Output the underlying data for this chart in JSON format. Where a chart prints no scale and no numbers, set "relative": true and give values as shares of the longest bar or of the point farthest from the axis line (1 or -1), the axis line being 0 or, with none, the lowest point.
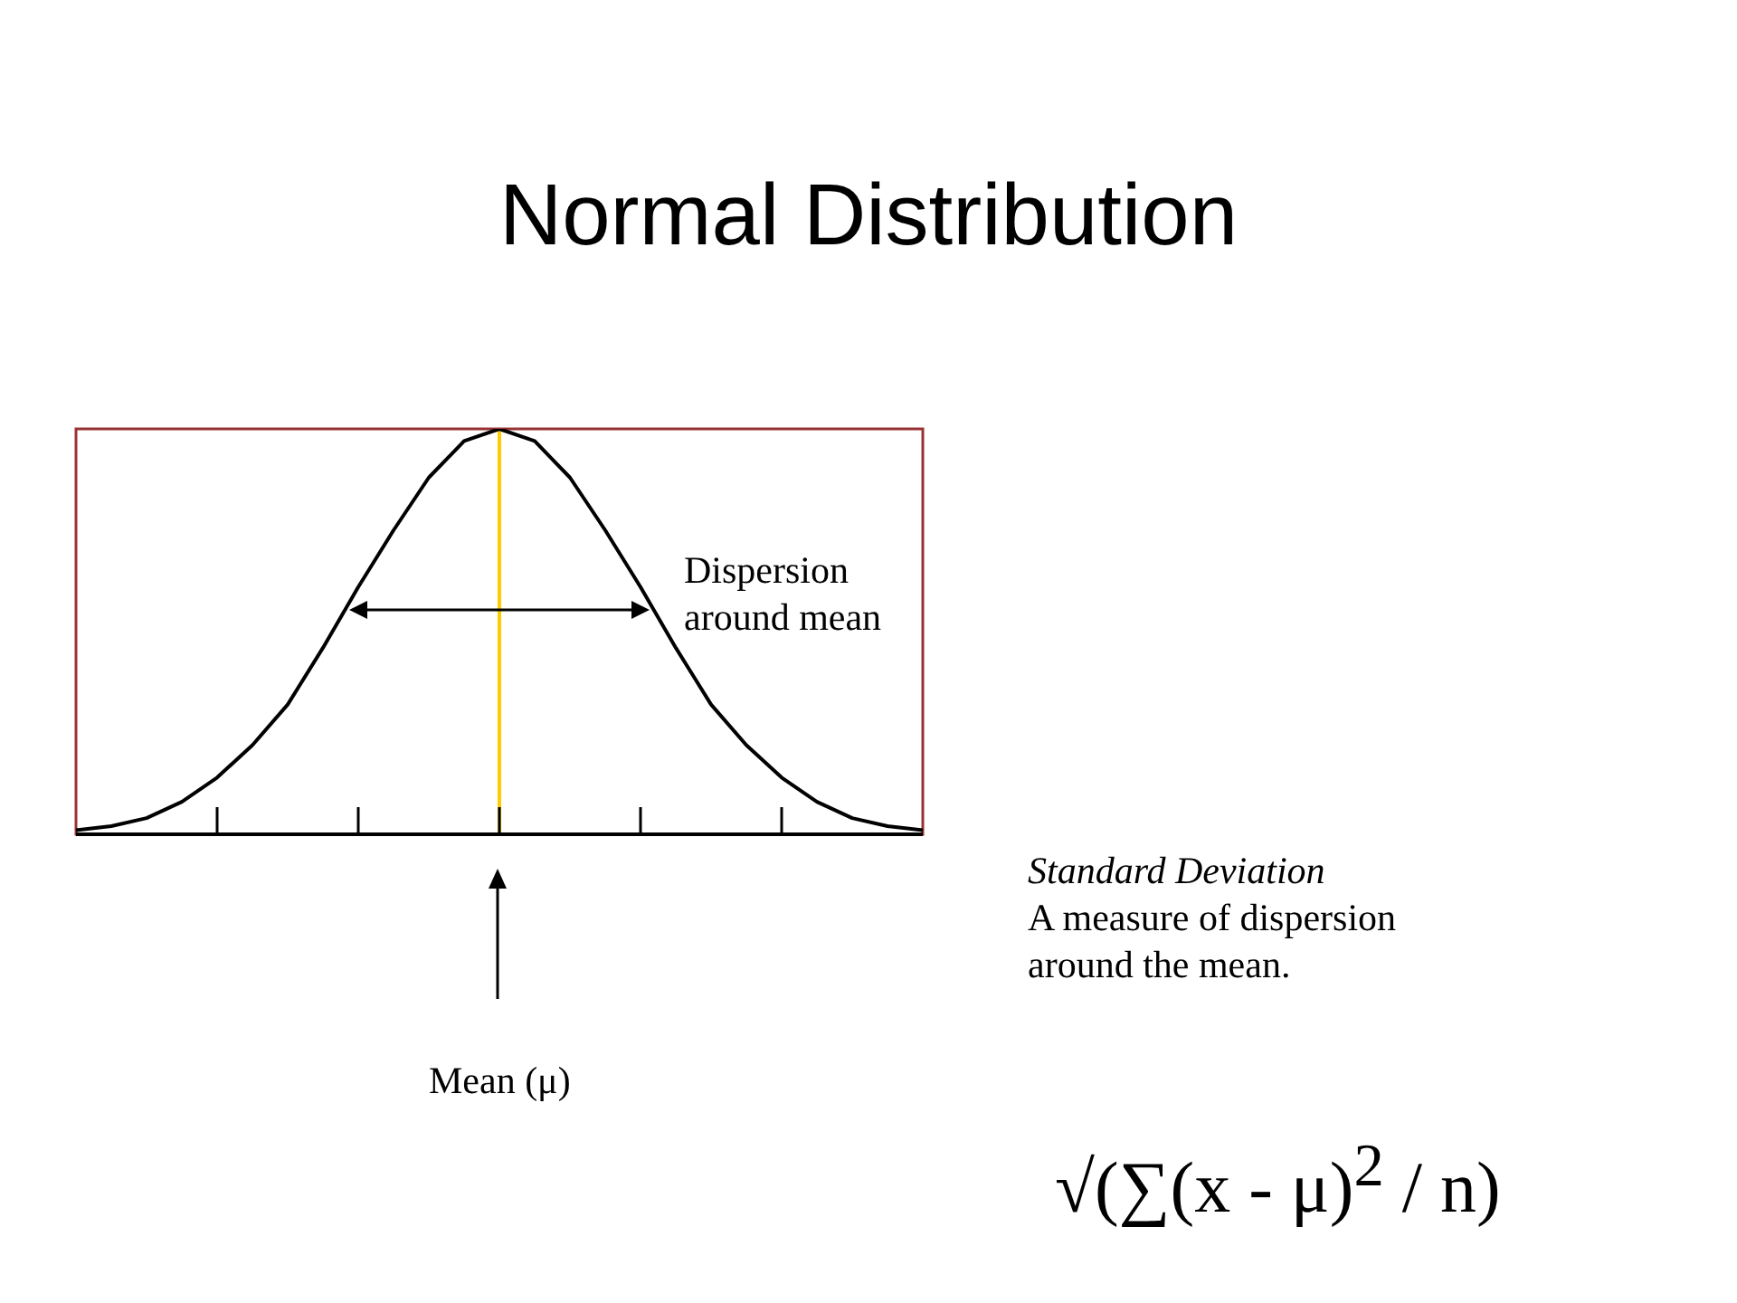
{
  "chart_data": {
    "type": "line",
    "title": "Normal Distribution",
    "relative": true,
    "categories": [
      null,
      null,
      null,
      null,
      null,
      null,
      null,
      null,
      null,
      null,
      null,
      null,
      null,
      null,
      null,
      null,
      null,
      null,
      null,
      null,
      null,
      null,
      null,
      null,
      null
    ],
    "series": [
      {
        "color": "#000000",
        "values": [
          0.01,
          0.02,
          0.04,
          0.08,
          0.14,
          0.22,
          0.32,
          0.46,
          0.61,
          0.75,
          0.88,
          0.97,
          1,
          0.97,
          0.88,
          0.75,
          0.61,
          0.46,
          0.32,
          0.22,
          0.14,
          0.08,
          0.04,
          0.02,
          0.01
        ]
      }
    ],
    "grid": false,
    "legend": false,
    "marker": "none",
    "line_style": "solid",
    "ref_lines": [
      {
        "axis": "x",
        "label": "Mean (μ)",
        "color": "#ffcc00"
      }
    ],
    "annotations": [
      "Dispersion\naround mean",
      "Standard Deviation",
      "A measure of dispersion\naround the mean.",
      "√(∑(x - μ)$^{2}$ / n)"
    ]
  }
}
